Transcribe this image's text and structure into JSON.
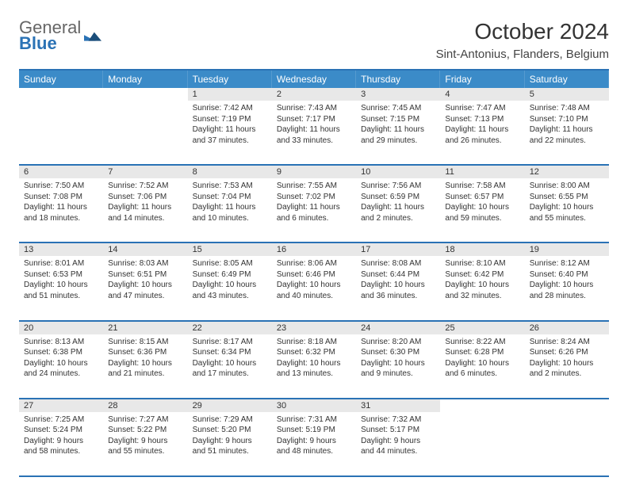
{
  "logo": {
    "line1": "General",
    "line2": "Blue"
  },
  "title": "October 2024",
  "location": "Sint-Antonius, Flanders, Belgium",
  "colors": {
    "accent": "#2a72b5",
    "header_bg": "#3b8bc8",
    "daynum_bg": "#e8e8e8",
    "text": "#333333"
  },
  "days_of_week": [
    "Sunday",
    "Monday",
    "Tuesday",
    "Wednesday",
    "Thursday",
    "Friday",
    "Saturday"
  ],
  "weeks": [
    [
      null,
      null,
      {
        "n": "1",
        "sr": "7:42 AM",
        "ss": "7:19 PM",
        "dl": "11 hours and 37 minutes."
      },
      {
        "n": "2",
        "sr": "7:43 AM",
        "ss": "7:17 PM",
        "dl": "11 hours and 33 minutes."
      },
      {
        "n": "3",
        "sr": "7:45 AM",
        "ss": "7:15 PM",
        "dl": "11 hours and 29 minutes."
      },
      {
        "n": "4",
        "sr": "7:47 AM",
        "ss": "7:13 PM",
        "dl": "11 hours and 26 minutes."
      },
      {
        "n": "5",
        "sr": "7:48 AM",
        "ss": "7:10 PM",
        "dl": "11 hours and 22 minutes."
      }
    ],
    [
      {
        "n": "6",
        "sr": "7:50 AM",
        "ss": "7:08 PM",
        "dl": "11 hours and 18 minutes."
      },
      {
        "n": "7",
        "sr": "7:52 AM",
        "ss": "7:06 PM",
        "dl": "11 hours and 14 minutes."
      },
      {
        "n": "8",
        "sr": "7:53 AM",
        "ss": "7:04 PM",
        "dl": "11 hours and 10 minutes."
      },
      {
        "n": "9",
        "sr": "7:55 AM",
        "ss": "7:02 PM",
        "dl": "11 hours and 6 minutes."
      },
      {
        "n": "10",
        "sr": "7:56 AM",
        "ss": "6:59 PM",
        "dl": "11 hours and 2 minutes."
      },
      {
        "n": "11",
        "sr": "7:58 AM",
        "ss": "6:57 PM",
        "dl": "10 hours and 59 minutes."
      },
      {
        "n": "12",
        "sr": "8:00 AM",
        "ss": "6:55 PM",
        "dl": "10 hours and 55 minutes."
      }
    ],
    [
      {
        "n": "13",
        "sr": "8:01 AM",
        "ss": "6:53 PM",
        "dl": "10 hours and 51 minutes."
      },
      {
        "n": "14",
        "sr": "8:03 AM",
        "ss": "6:51 PM",
        "dl": "10 hours and 47 minutes."
      },
      {
        "n": "15",
        "sr": "8:05 AM",
        "ss": "6:49 PM",
        "dl": "10 hours and 43 minutes."
      },
      {
        "n": "16",
        "sr": "8:06 AM",
        "ss": "6:46 PM",
        "dl": "10 hours and 40 minutes."
      },
      {
        "n": "17",
        "sr": "8:08 AM",
        "ss": "6:44 PM",
        "dl": "10 hours and 36 minutes."
      },
      {
        "n": "18",
        "sr": "8:10 AM",
        "ss": "6:42 PM",
        "dl": "10 hours and 32 minutes."
      },
      {
        "n": "19",
        "sr": "8:12 AM",
        "ss": "6:40 PM",
        "dl": "10 hours and 28 minutes."
      }
    ],
    [
      {
        "n": "20",
        "sr": "8:13 AM",
        "ss": "6:38 PM",
        "dl": "10 hours and 24 minutes."
      },
      {
        "n": "21",
        "sr": "8:15 AM",
        "ss": "6:36 PM",
        "dl": "10 hours and 21 minutes."
      },
      {
        "n": "22",
        "sr": "8:17 AM",
        "ss": "6:34 PM",
        "dl": "10 hours and 17 minutes."
      },
      {
        "n": "23",
        "sr": "8:18 AM",
        "ss": "6:32 PM",
        "dl": "10 hours and 13 minutes."
      },
      {
        "n": "24",
        "sr": "8:20 AM",
        "ss": "6:30 PM",
        "dl": "10 hours and 9 minutes."
      },
      {
        "n": "25",
        "sr": "8:22 AM",
        "ss": "6:28 PM",
        "dl": "10 hours and 6 minutes."
      },
      {
        "n": "26",
        "sr": "8:24 AM",
        "ss": "6:26 PM",
        "dl": "10 hours and 2 minutes."
      }
    ],
    [
      {
        "n": "27",
        "sr": "7:25 AM",
        "ss": "5:24 PM",
        "dl": "9 hours and 58 minutes."
      },
      {
        "n": "28",
        "sr": "7:27 AM",
        "ss": "5:22 PM",
        "dl": "9 hours and 55 minutes."
      },
      {
        "n": "29",
        "sr": "7:29 AM",
        "ss": "5:20 PM",
        "dl": "9 hours and 51 minutes."
      },
      {
        "n": "30",
        "sr": "7:31 AM",
        "ss": "5:19 PM",
        "dl": "9 hours and 48 minutes."
      },
      {
        "n": "31",
        "sr": "7:32 AM",
        "ss": "5:17 PM",
        "dl": "9 hours and 44 minutes."
      },
      null,
      null
    ]
  ],
  "labels": {
    "sunrise": "Sunrise: ",
    "sunset": "Sunset: ",
    "daylight": "Daylight: "
  }
}
